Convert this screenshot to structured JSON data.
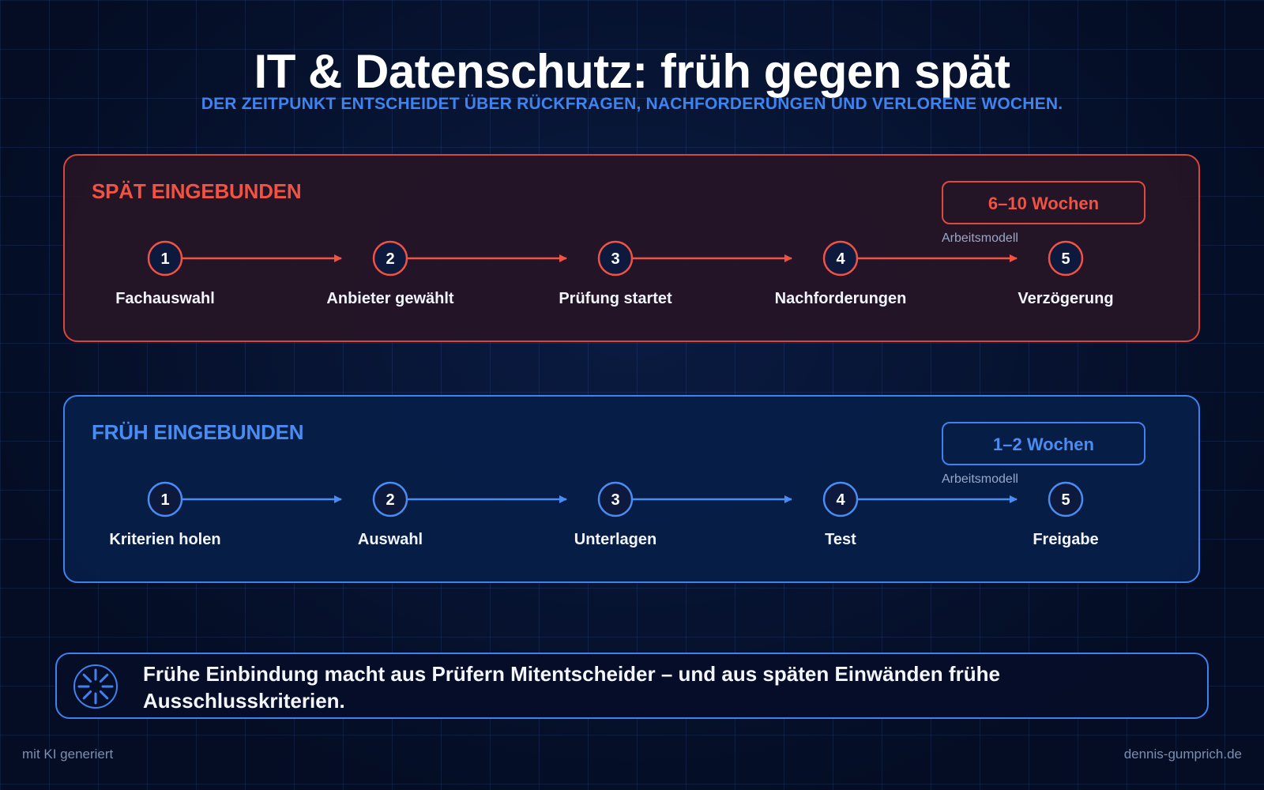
{
  "title": "IT & Datenschutz: früh gegen spät",
  "subtitle": "DER ZEITPUNKT ENTSCHEIDET ÜBER RÜCKFRAGEN, NACHFORDERUNGEN UND VERLORENE WOCHEN.",
  "late": {
    "heading": "SPÄT EINGEBUNDEN",
    "badge": "6–10 Wochen",
    "badge_caption": "Arbeitsmodell",
    "accent_color": "#f05243",
    "steps": [
      {
        "number": "1",
        "label": "Fachauswahl"
      },
      {
        "number": "2",
        "label": "Anbieter gewählt"
      },
      {
        "number": "3",
        "label": "Prüfung startet"
      },
      {
        "number": "4",
        "label": "Nachforderungen"
      },
      {
        "number": "5",
        "label": "Verzögerung"
      }
    ]
  },
  "early": {
    "heading": "FRÜH EINGEBUNDEN",
    "badge": "1–2 Wochen",
    "badge_caption": "Arbeitsmodell",
    "accent_color": "#4a8cf2",
    "steps": [
      {
        "number": "1",
        "label": "Kriterien holen"
      },
      {
        "number": "2",
        "label": "Auswahl"
      },
      {
        "number": "3",
        "label": "Unterlagen"
      },
      {
        "number": "4",
        "label": "Test"
      },
      {
        "number": "5",
        "label": "Freigabe"
      }
    ]
  },
  "callout": {
    "icon": "loading-spinner-icon",
    "text": "Frühe Einbindung macht aus Prüfern Mitentscheider – und aus späten Einwänden frühe Ausschlusskriterien."
  },
  "footer": {
    "left": "mit KI generiert",
    "right": "dennis-gumprich.de"
  }
}
